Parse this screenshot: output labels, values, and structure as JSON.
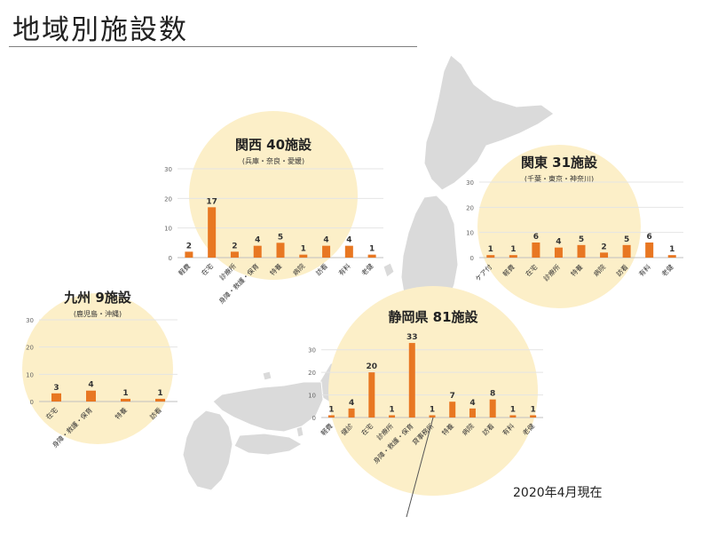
{
  "page": {
    "title": "地域別施設数",
    "date_note": "2020年4月現在"
  },
  "colors": {
    "bar": "#E87722",
    "bubble": "#FCEFC8",
    "map_fill": "#DADADA",
    "map_stroke": "#FFFFFF"
  },
  "chart_data": [
    {
      "type": "bar",
      "region": "kansai",
      "title": "関西 40施設",
      "subtitle": "(兵庫・奈良・愛媛)",
      "categories": [
        "軽費",
        "在宅",
        "診療所",
        "身障・救護・保育",
        "特養",
        "病院",
        "訪看",
        "有料",
        "老健"
      ],
      "values": [
        2,
        17,
        2,
        4,
        5,
        1,
        4,
        4,
        1
      ],
      "yticks": [
        0,
        10,
        20,
        30
      ],
      "ylim": [
        0,
        30
      ],
      "grid": true
    },
    {
      "type": "bar",
      "region": "kanto",
      "title": "関東 31施設",
      "subtitle": "(千葉・東京・神奈川)",
      "categories": [
        "ケア付",
        "軽費",
        "在宅",
        "診療所",
        "特養",
        "病院",
        "訪看",
        "有料",
        "老健"
      ],
      "values": [
        1,
        1,
        6,
        4,
        5,
        2,
        5,
        6,
        1
      ],
      "yticks": [
        0,
        10,
        20,
        30
      ],
      "ylim": [
        0,
        30
      ],
      "grid": true
    },
    {
      "type": "bar",
      "region": "kyushu",
      "title": "九州 9施設",
      "subtitle": "(鹿児島・沖縄)",
      "categories": [
        "在宅",
        "身障・救護・保育",
        "特養",
        "訪看"
      ],
      "values": [
        3,
        4,
        1,
        1
      ],
      "yticks": [
        0,
        10,
        20,
        30
      ],
      "ylim": [
        0,
        30
      ],
      "grid": true
    },
    {
      "type": "bar",
      "region": "shizuoka",
      "title": "静岡県 81施設",
      "subtitle": "",
      "categories": [
        "軽費",
        "健診",
        "在宅",
        "診療所",
        "身障・救護・保育",
        "貸事務所",
        "特養",
        "病院",
        "訪看",
        "有料",
        "老健"
      ],
      "values": [
        1,
        4,
        20,
        1,
        33,
        1,
        7,
        4,
        8,
        1,
        1
      ],
      "yticks": [
        0,
        10,
        20,
        30
      ],
      "ylim": [
        0,
        35
      ],
      "grid": true
    }
  ]
}
